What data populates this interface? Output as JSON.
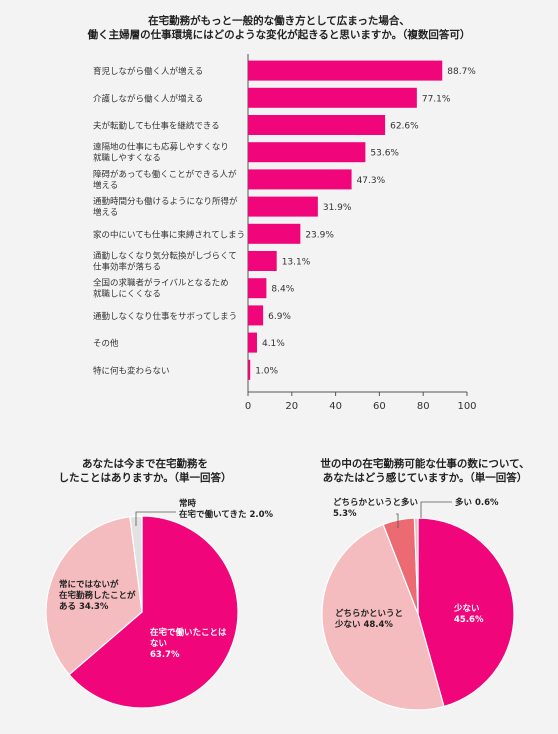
{
  "colors": {
    "magenta": "#f0057a",
    "pink": "#f4bcbf",
    "coral": "#ec6a72",
    "gray": "#e2e2e2",
    "background": "#f3f3f3"
  },
  "bar_chart_title": {
    "line1": "在宅勤務がもっと一般的な働き方として広まった場合、",
    "line2": "働く主婦層の仕事環境にはどのような変化が起きると思いますか。（複数回答可）"
  },
  "pie1_title": {
    "line1": "あなたは今まで在宅勤務を",
    "line2": "したことはありますか。（単一回答）"
  },
  "pie2_title": {
    "line1": "世の中の在宅勤務可能な仕事の数について、",
    "line2": "あなたはどう感じていますか。（単一回答）"
  },
  "chart_data": [
    {
      "type": "bar",
      "orientation": "horizontal",
      "categories": [
        [
          "育児しながら働く人が増える"
        ],
        [
          "介護しながら働く人が増える"
        ],
        [
          "夫が転勤しても仕事を継続できる"
        ],
        [
          "遠隔地の仕事にも応募しやすくなり",
          "就職しやすくなる"
        ],
        [
          "障碍があっても働くことができる人が",
          "増える"
        ],
        [
          "通勤時間分も働けるようになり所得が",
          "増える"
        ],
        [
          "家の中にいても仕事に束縛されてしまう"
        ],
        [
          "通勤しなくなり気分転換がしづらくて",
          "仕事効率が落ちる"
        ],
        [
          "全国の求職者がライバルとなるため",
          "就職しにくくなる"
        ],
        [
          "通勤しなくなり仕事をサボってしまう"
        ],
        [
          "その他"
        ],
        [
          "特に何も変わらない"
        ]
      ],
      "values": [
        88.7,
        77.1,
        62.6,
        53.6,
        47.3,
        31.9,
        23.9,
        13.1,
        8.4,
        6.9,
        4.1,
        1.0
      ],
      "value_labels": [
        "88.7%",
        "77.1%",
        "62.6%",
        "53.6%",
        "47.3%",
        "31.9%",
        "23.9%",
        "13.1%",
        "8.4%",
        "6.9%",
        "4.1%",
        "1.0%"
      ],
      "xlim": [
        0,
        100
      ],
      "xticks": [
        0,
        20,
        40,
        60,
        80,
        100
      ],
      "color": "#f0057a"
    },
    {
      "type": "pie",
      "slices": [
        {
          "label_lines": [
            "在宅で働いたことは",
            "ない",
            "63.7%"
          ],
          "value": 63.7,
          "color": "#f0057a"
        },
        {
          "label_lines": [
            "常にではないが",
            "在宅勤務したことが",
            "ある 34.3%"
          ],
          "value": 34.3,
          "color": "#f4bcbf"
        },
        {
          "label_lines": [
            "常時",
            "在宅で働いてきた 2.0%"
          ],
          "value": 2.0,
          "color": "#e2e2e2"
        }
      ]
    },
    {
      "type": "pie",
      "slices": [
        {
          "label_lines": [
            "少ない",
            "45.6%"
          ],
          "value": 45.6,
          "color": "#f0057a"
        },
        {
          "label_lines": [
            "どちらかというと",
            "少ない 48.4%"
          ],
          "value": 48.4,
          "color": "#f4bcbf"
        },
        {
          "label_lines": [
            "どちらかというと多い",
            "5.3%"
          ],
          "value": 5.3,
          "color": "#ec6a72"
        },
        {
          "label_lines": [
            "多い 0.6%"
          ],
          "value": 0.6,
          "color": "#f4bcbf"
        }
      ]
    }
  ]
}
